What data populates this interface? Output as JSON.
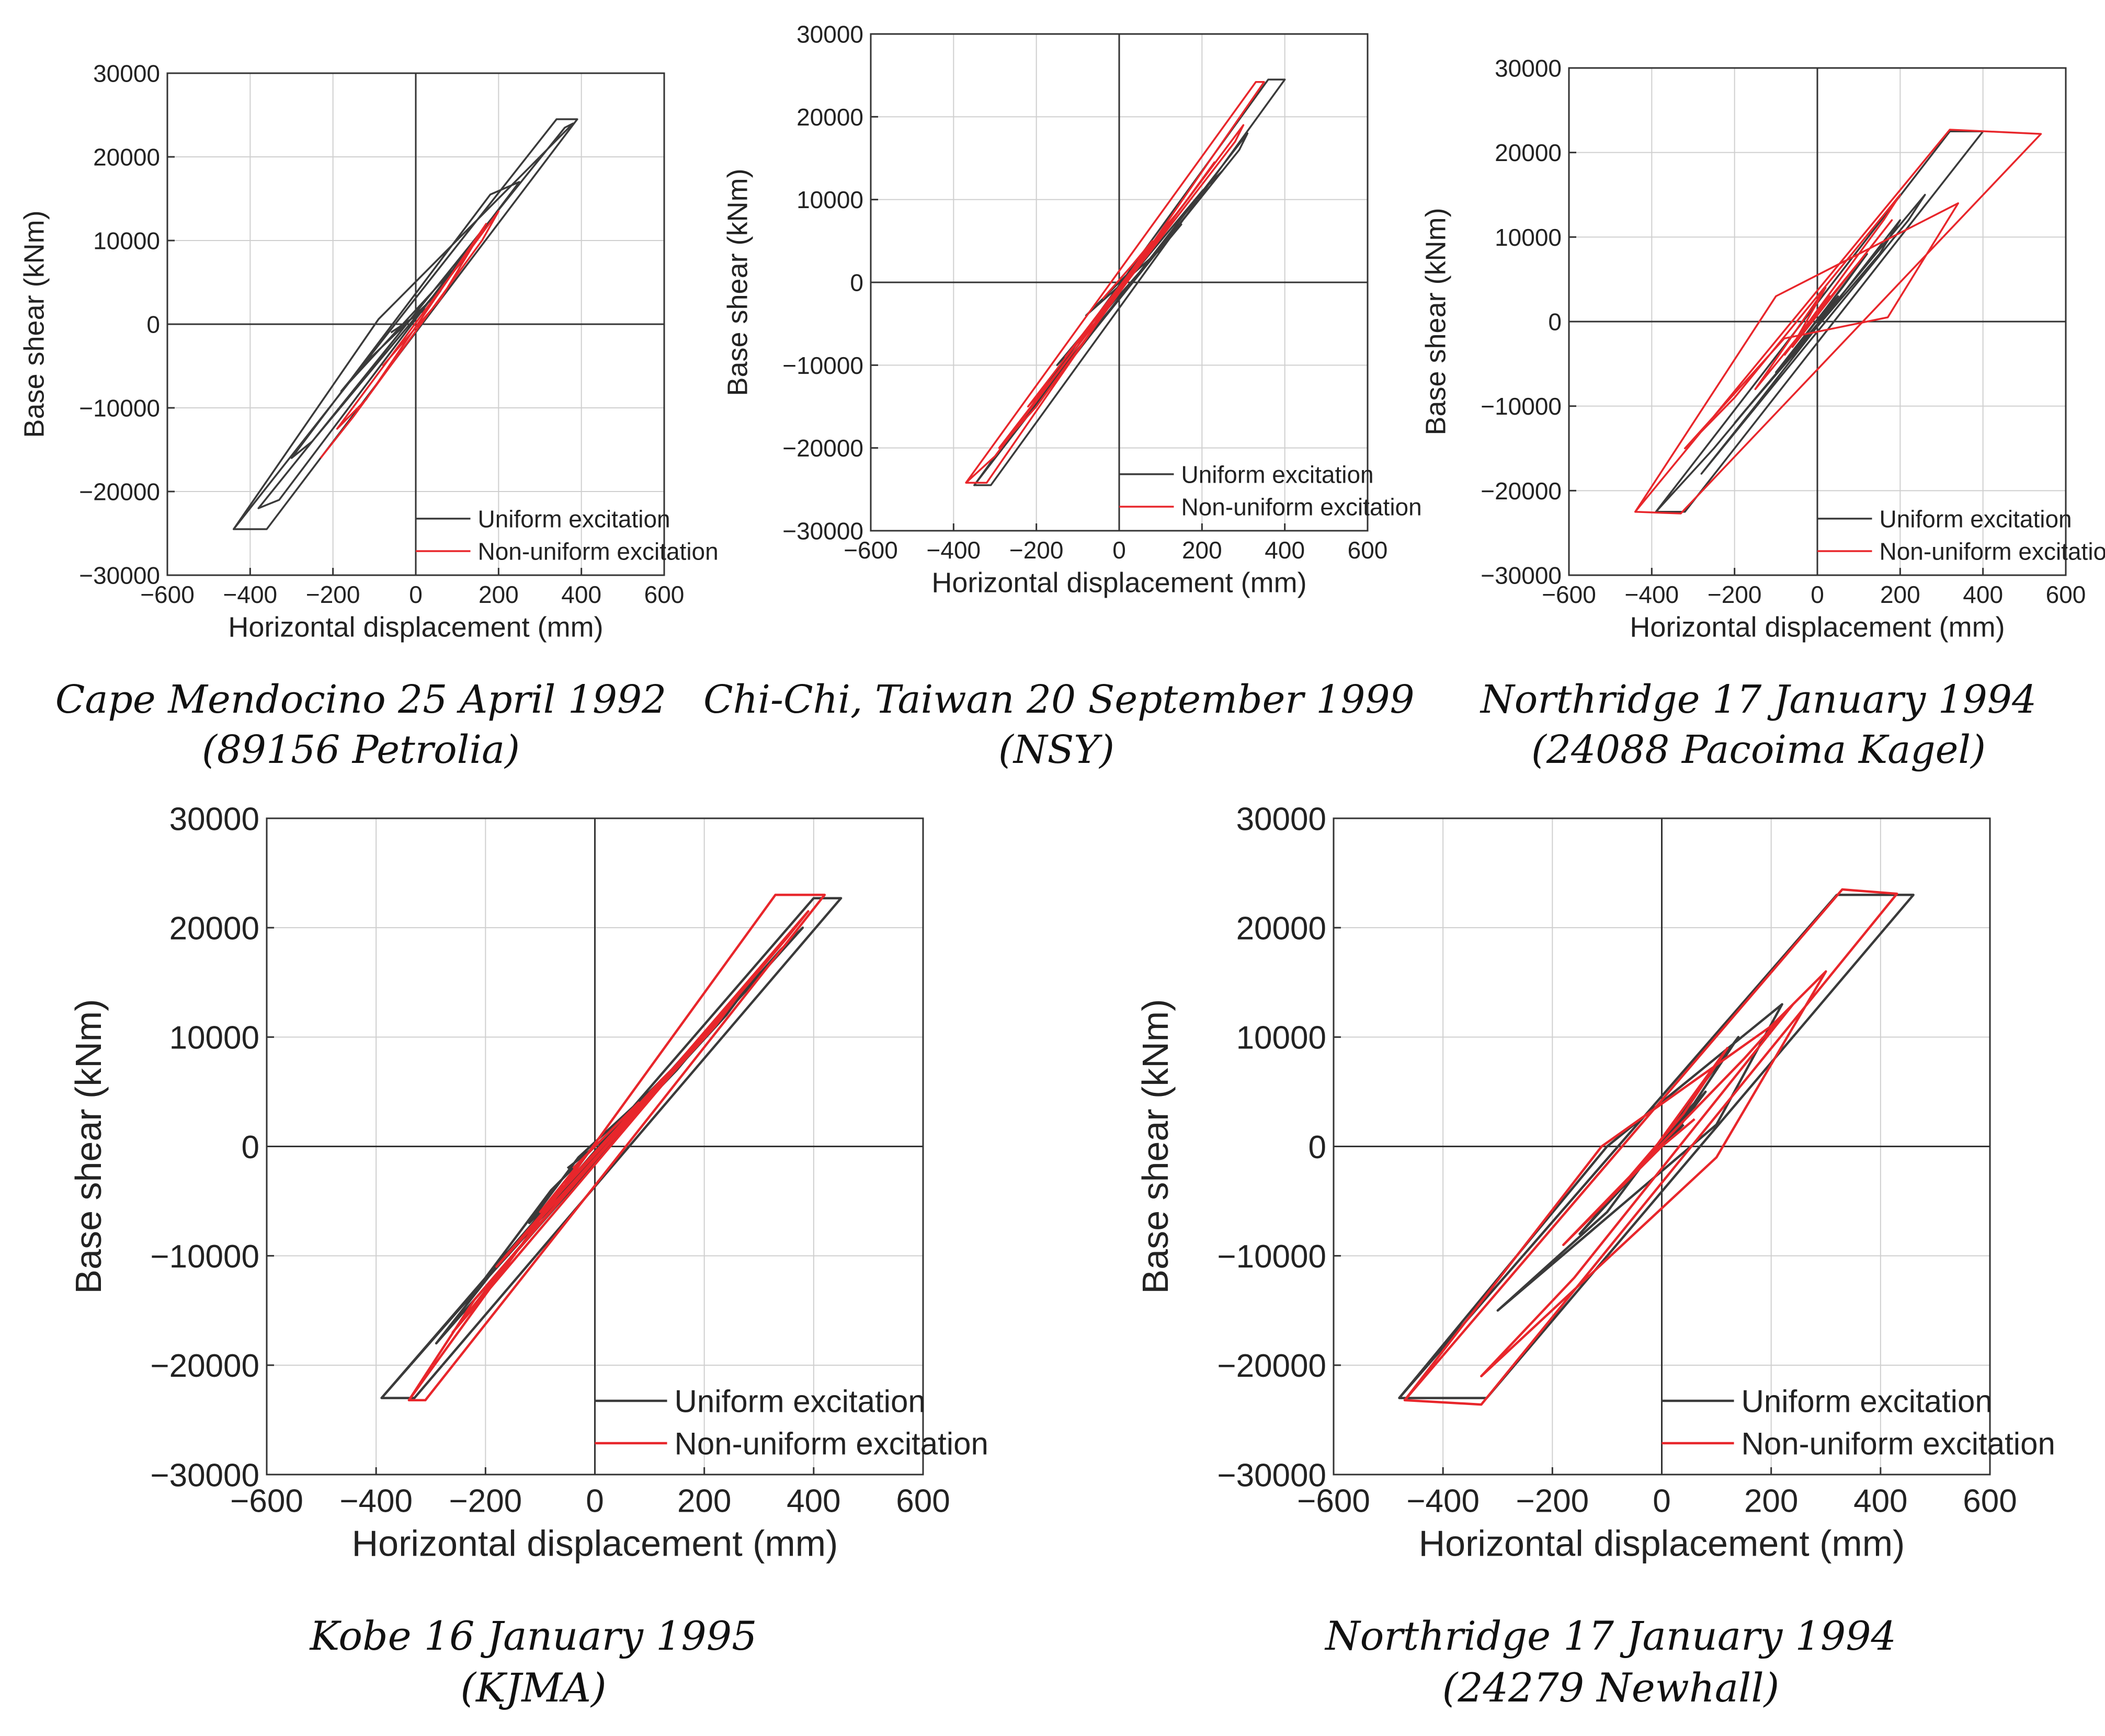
{
  "figure": {
    "colors": {
      "uniform": "#3a3a3a",
      "non_uniform": "#e8262b",
      "grid": "#cfcfcf",
      "axis": "#333333"
    }
  },
  "chart_data": [
    {
      "type": "line",
      "title": "",
      "caption": [
        "Cape Mendocino 25 April 1992",
        "(89156 Petrolia)"
      ],
      "xlabel": "Horizontal displacement (mm)",
      "ylabel": "Base shear (kNm)",
      "xlim": [
        -600,
        600
      ],
      "ylim": [
        -30000,
        30000
      ],
      "xticks": [
        -600,
        -400,
        -200,
        0,
        200,
        400,
        600
      ],
      "yticks": [
        -30000,
        -20000,
        -10000,
        0,
        10000,
        20000,
        30000
      ],
      "xtick_labels": [
        "−600",
        "−400",
        "−200",
        "0",
        "200",
        "400",
        "600"
      ],
      "ytick_labels": [
        "−30000",
        "−20000",
        "−10000",
        "0",
        "10000",
        "20000",
        "30000"
      ],
      "grid": true,
      "legend": "bottom-right",
      "series": [
        {
          "name": "Uniform excitation",
          "x": [
            -440,
            -360,
            390,
            340,
            -440,
            -90,
            380,
            360,
            -380,
            -330,
            250,
            180,
            -300,
            -250,
            120,
            80,
            -180,
            -130,
            60,
            30,
            -60
          ],
          "y": [
            -24500,
            -24500,
            24500,
            24500,
            -24500,
            600,
            24000,
            23500,
            -22000,
            -21000,
            17000,
            15500,
            -16000,
            -14000,
            8000,
            6000,
            -8000,
            -5000,
            4000,
            2000,
            -1000
          ]
        },
        {
          "name": "Non-uniform excitation",
          "x": [
            -230,
            -150,
            160,
            200,
            -190,
            -120,
            170,
            60,
            -80
          ],
          "y": [
            -16000,
            -11000,
            10000,
            13500,
            -12500,
            -9000,
            12000,
            3000,
            -5000
          ]
        }
      ]
    },
    {
      "type": "line",
      "title": "",
      "caption": [
        "Chi-Chi, Taiwan 20 September 1999",
        "(NSY)"
      ],
      "xlabel": "Horizontal displacement (mm)",
      "ylabel": "Base shear (kNm)",
      "xlim": [
        -600,
        600
      ],
      "ylim": [
        -30000,
        30000
      ],
      "xticks": [
        -600,
        -400,
        -200,
        0,
        200,
        400,
        600
      ],
      "yticks": [
        -30000,
        -20000,
        -10000,
        0,
        10000,
        20000,
        30000
      ],
      "xtick_labels": [
        "−600",
        "−400",
        "−200",
        "0",
        "200",
        "400",
        "600"
      ],
      "ytick_labels": [
        "−30000",
        "−20000",
        "−10000",
        "0",
        "10000",
        "20000",
        "30000"
      ],
      "grid": true,
      "legend": "bottom-right",
      "series": [
        {
          "name": "Uniform excitation",
          "x": [
            -350,
            -310,
            400,
            360,
            -350,
            -250,
            310,
            290,
            -240,
            -180,
            250,
            200,
            -150,
            -60,
            150,
            100,
            -80,
            0,
            60
          ],
          "y": [
            -24500,
            -24500,
            24500,
            24500,
            -24500,
            -18000,
            18000,
            16000,
            -17000,
            -13000,
            13500,
            11000,
            -10000,
            -5000,
            7000,
            4000,
            -4000,
            0,
            3000
          ]
        },
        {
          "name": "Non-uniform excitation",
          "x": [
            -370,
            -320,
            350,
            330,
            -370,
            -300,
            300,
            280,
            -290,
            -200,
            230,
            180,
            -220,
            -150,
            150,
            100,
            -130,
            -60,
            80,
            30,
            -40
          ],
          "y": [
            -24200,
            -24200,
            24200,
            24200,
            -24200,
            -21000,
            19000,
            17000,
            -20000,
            -15000,
            14500,
            11000,
            -15000,
            -11000,
            9000,
            6000,
            -9000,
            -5000,
            5000,
            2000,
            -2000
          ]
        }
      ]
    },
    {
      "type": "line",
      "title": "",
      "caption": [
        "Northridge 17 January 1994",
        "(24088 Pacoima Kagel)"
      ],
      "xlabel": "Horizontal displacement (mm)",
      "ylabel": "Base shear (kNm)",
      "xlim": [
        -600,
        600
      ],
      "ylim": [
        -30000,
        30000
      ],
      "xticks": [
        -600,
        -400,
        -200,
        0,
        200,
        400,
        600
      ],
      "yticks": [
        -30000,
        -20000,
        -10000,
        0,
        10000,
        20000,
        30000
      ],
      "xtick_labels": [
        "−600",
        "−400",
        "−200",
        "0",
        "200",
        "400",
        "600"
      ],
      "ytick_labels": [
        "−30000",
        "−20000",
        "−10000",
        "0",
        "10000",
        "20000",
        "30000"
      ],
      "grid": true,
      "legend": "bottom-right",
      "series": [
        {
          "name": "Uniform excitation",
          "x": [
            -390,
            -320,
            400,
            320,
            -390,
            -250,
            260,
            220,
            -280,
            -150,
            200,
            150,
            -200,
            -80,
            120,
            60,
            -100,
            -20,
            50,
            0
          ],
          "y": [
            -22500,
            -22500,
            22500,
            22500,
            -22500,
            -15000,
            15000,
            12000,
            -18000,
            -10000,
            12000,
            8000,
            -12000,
            -5000,
            8000,
            4000,
            -6000,
            -1000,
            3000,
            0
          ]
        },
        {
          "name": "Non-uniform excitation",
          "x": [
            -440,
            -330,
            540,
            320,
            -440,
            -100,
            340,
            170,
            -80,
            -320,
            -200,
            200,
            160,
            -50,
            20,
            -150,
            100,
            180,
            -60,
            30,
            -80
          ],
          "y": [
            -22500,
            -22700,
            22200,
            22700,
            -22500,
            3000,
            14000,
            500,
            -2000,
            -15000,
            -9000,
            15000,
            12000,
            -2000,
            4000,
            -8000,
            7000,
            12000,
            -3000,
            3000,
            -4000
          ]
        }
      ]
    },
    {
      "type": "line",
      "title": "",
      "caption": [
        "Kobe 16 January 1995",
        "(KJMA)"
      ],
      "xlabel": "Horizontal displacement (mm)",
      "ylabel": "Base shear (kNm)",
      "xlim": [
        -600,
        600
      ],
      "ylim": [
        -30000,
        30000
      ],
      "xticks": [
        -600,
        -400,
        -200,
        0,
        200,
        400,
        600
      ],
      "yticks": [
        -30000,
        -20000,
        -10000,
        0,
        10000,
        20000,
        30000
      ],
      "xtick_labels": [
        "−600",
        "−400",
        "−200",
        "0",
        "200",
        "400",
        "600"
      ],
      "ytick_labels": [
        "−30000",
        "−20000",
        "−10000",
        "0",
        "10000",
        "20000",
        "30000"
      ],
      "grid": true,
      "legend": "bottom-right",
      "series": [
        {
          "name": "Uniform excitation",
          "x": [
            -390,
            -330,
            450,
            400,
            -390,
            -250,
            380,
            340,
            -290,
            -180,
            300,
            240,
            -200,
            -80,
            200,
            150,
            -120,
            -30,
            100,
            50,
            -50
          ],
          "y": [
            -23000,
            -23000,
            22700,
            22700,
            -23000,
            -15000,
            20000,
            18000,
            -18000,
            -11000,
            16000,
            12000,
            -12000,
            -4000,
            10000,
            7000,
            -7000,
            -1000,
            5000,
            2000,
            -2000
          ]
        },
        {
          "name": "Non-uniform excitation",
          "x": [
            -340,
            -310,
            420,
            330,
            -340,
            -220,
            390,
            350,
            -260,
            -150,
            280,
            220,
            -180,
            -60,
            180,
            120,
            -100,
            -20,
            80,
            30,
            -40
          ],
          "y": [
            -23200,
            -23200,
            23000,
            23000,
            -23200,
            -14000,
            21500,
            19000,
            -17000,
            -10000,
            15000,
            11000,
            -11000,
            -4000,
            9000,
            6000,
            -6000,
            -1000,
            4000,
            1500,
            -2000
          ]
        }
      ]
    },
    {
      "type": "line",
      "title": "",
      "caption": [
        "Northridge 17 January 1994",
        "(24279 Newhall)"
      ],
      "xlabel": "Horizontal displacement (mm)",
      "ylabel": "Base shear (kNm)",
      "xlim": [
        -600,
        600
      ],
      "ylim": [
        -30000,
        30000
      ],
      "xticks": [
        -600,
        -400,
        -200,
        0,
        200,
        400,
        600
      ],
      "yticks": [
        -30000,
        -20000,
        -10000,
        0,
        10000,
        20000,
        30000
      ],
      "xtick_labels": [
        "−600",
        "−400",
        "−200",
        "0",
        "200",
        "400",
        "600"
      ],
      "ytick_labels": [
        "−30000",
        "−20000",
        "−10000",
        "0",
        "10000",
        "20000",
        "30000"
      ],
      "grid": true,
      "legend": "bottom-right",
      "series": [
        {
          "name": "Uniform excitation",
          "x": [
            -480,
            -320,
            460,
            320,
            -480,
            -100,
            220,
            100,
            -300,
            -100,
            140,
            60,
            -150,
            -40,
            80,
            20,
            -60,
            0,
            40
          ],
          "y": [
            -23000,
            -23000,
            23000,
            23000,
            -23000,
            0,
            13000,
            2000,
            -15000,
            -6000,
            10000,
            4000,
            -8000,
            -2000,
            5000,
            1000,
            -3000,
            0,
            2000
          ]
        },
        {
          "name": "Non-uniform excitation",
          "x": [
            -470,
            -330,
            430,
            330,
            -470,
            -110,
            200,
            300,
            100,
            -330,
            -160,
            240,
            150,
            -180,
            -40,
            120,
            40,
            -80,
            0,
            60
          ],
          "y": [
            -23200,
            -23600,
            23100,
            23500,
            -23200,
            0,
            11000,
            16000,
            -1000,
            -21000,
            -12000,
            13000,
            8000,
            -9000,
            -2000,
            9000,
            3000,
            -4000,
            0,
            2500
          ]
        }
      ]
    }
  ]
}
